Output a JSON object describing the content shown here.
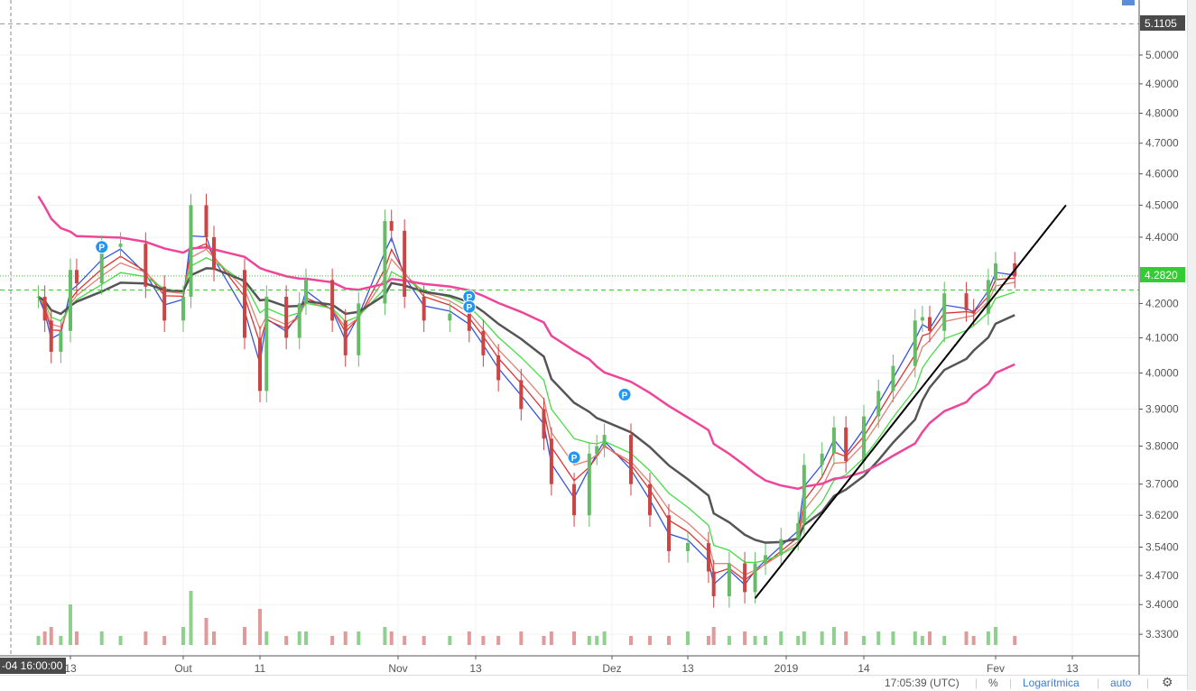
{
  "chart_data": {
    "type": "candlestick",
    "scale": "log",
    "ylim": [
      3.3,
      5.13
    ],
    "y_ticks": [
      "5.0000",
      "4.9000",
      "4.8000",
      "4.7000",
      "4.6000",
      "4.5000",
      "4.4000",
      "4.2000",
      "4.1000",
      "4.0000",
      "3.9000",
      "3.8000",
      "3.7000",
      "3.6200",
      "3.5400",
      "3.4700",
      "3.4000",
      "3.3300"
    ],
    "x_ticks": [
      {
        "date": "2018-09-13",
        "label": "13"
      },
      {
        "date": "2018-10-01",
        "label": "Out"
      },
      {
        "date": "2018-10-11",
        "label": "11"
      },
      {
        "date": "2018-11-01",
        "label": "Nov"
      },
      {
        "date": "2018-11-13",
        "label": "13"
      },
      {
        "date": "2018-12-01",
        "label": "Dez"
      },
      {
        "date": "2018-12-13",
        "label": "13"
      },
      {
        "date": "2019-01-01",
        "label": "2019"
      },
      {
        "date": "2019-01-14",
        "label": "14"
      },
      {
        "date": "2019-02-01",
        "label": "Fev"
      },
      {
        "date": "2019-02-13",
        "label": "13"
      }
    ],
    "crosshair_label": "-04 16:00:00",
    "dates": [
      "2018-09-03",
      "2018-09-05",
      "2018-09-07",
      "2018-09-10",
      "2018-09-13",
      "2018-09-14",
      "2018-09-18",
      "2018-09-21",
      "2018-09-25",
      "2018-09-28",
      "2018-10-01",
      "2018-10-02",
      "2018-10-04",
      "2018-10-05",
      "2018-10-09",
      "2018-10-11",
      "2018-10-12",
      "2018-10-15",
      "2018-10-17",
      "2018-10-18",
      "2018-10-22",
      "2018-10-24",
      "2018-10-26",
      "2018-10-30",
      "2018-10-31",
      "2018-11-02",
      "2018-11-05",
      "2018-11-09",
      "2018-11-12",
      "2018-11-14",
      "2018-11-16",
      "2018-11-19",
      "2018-11-22",
      "2018-11-23",
      "2018-11-26",
      "2018-11-28",
      "2018-11-29",
      "2018-11-30",
      "2018-12-04",
      "2018-12-07",
      "2018-12-10",
      "2018-12-13",
      "2018-12-17",
      "2018-12-18",
      "2018-12-21",
      "2018-12-24",
      "2018-12-26",
      "2018-12-28",
      "2018-12-31",
      "2019-01-03",
      "2019-01-04",
      "2019-01-07",
      "2019-01-09",
      "2019-01-11",
      "2019-01-14",
      "2019-01-16",
      "2019-01-18",
      "2019-01-21",
      "2019-01-22",
      "2019-01-23",
      "2019-01-25",
      "2019-01-28",
      "2019-01-29",
      "2019-01-31",
      "2019-02-01",
      "2019-02-04"
    ],
    "close": [
      4.22,
      4.15,
      4.06,
      4.12,
      4.3,
      4.26,
      4.37,
      4.38,
      4.25,
      4.15,
      4.22,
      4.5,
      4.4,
      4.3,
      4.1,
      3.95,
      4.22,
      4.1,
      4.2,
      4.27,
      4.15,
      4.05,
      4.2,
      4.45,
      4.42,
      4.22,
      4.15,
      4.17,
      4.12,
      4.05,
      3.98,
      3.9,
      3.82,
      3.7,
      3.62,
      3.78,
      3.8,
      3.83,
      3.7,
      3.62,
      3.53,
      3.55,
      3.48,
      3.42,
      3.5,
      3.43,
      3.5,
      3.52,
      3.56,
      3.6,
      3.75,
      3.78,
      3.85,
      3.76,
      3.88,
      3.95,
      4.02,
      4.15,
      4.16,
      4.12,
      4.23,
      4.18,
      4.17,
      4.27,
      4.32,
      4.28
    ],
    "volume": [
      2,
      3,
      4,
      2,
      9,
      3,
      3,
      2,
      3,
      2,
      4,
      12,
      6,
      3,
      4,
      8,
      3,
      2,
      3,
      3,
      2,
      3,
      3,
      4,
      3,
      2,
      2,
      2,
      3,
      2,
      2,
      3,
      2,
      3,
      3,
      2,
      2,
      3,
      2,
      2,
      2,
      3,
      2,
      4,
      2,
      3,
      2,
      2,
      3,
      2,
      3,
      3,
      4,
      3,
      2,
      3,
      3,
      3,
      2,
      3,
      2,
      3,
      2,
      3,
      4,
      2
    ],
    "horizontal_lines": [
      {
        "price": 5.1105,
        "color": "#999999",
        "style": "dashed"
      },
      {
        "price": 4.282,
        "color": "#33cc33",
        "style": "dotted"
      },
      {
        "price": 4.24,
        "color": "#33cc33",
        "style": "dashed"
      }
    ],
    "trendline": {
      "from": {
        "date": "2018-12-26",
        "price": 3.415
      },
      "to": {
        "date": "2019-02-12",
        "price": 4.5
      },
      "color": "#000000"
    },
    "markers": [
      {
        "date": "2018-09-18",
        "price": 4.37,
        "label": "P"
      },
      {
        "date": "2018-11-12",
        "price": 4.22,
        "label": "P"
      },
      {
        "date": "2018-11-12",
        "price": 4.19,
        "label": "P"
      },
      {
        "date": "2018-11-26",
        "price": 3.77,
        "label": "P"
      },
      {
        "date": "2018-12-03",
        "price": 3.94,
        "label": "P"
      }
    ],
    "ma_colors": [
      "#3355dd",
      "#dd3333",
      "#e08070",
      "#44dd44",
      "#555555",
      "#ee4499"
    ],
    "last_price_label": "4.2820",
    "top_price_label": "5.1105",
    "up_color": "#66bb66",
    "down_color": "#cc4444"
  },
  "toolbar": {
    "time": "17:05:39 (UTC)",
    "percent": "%",
    "log": "Logarítmica",
    "auto": "auto",
    "settings_icon": "gear-icon"
  }
}
